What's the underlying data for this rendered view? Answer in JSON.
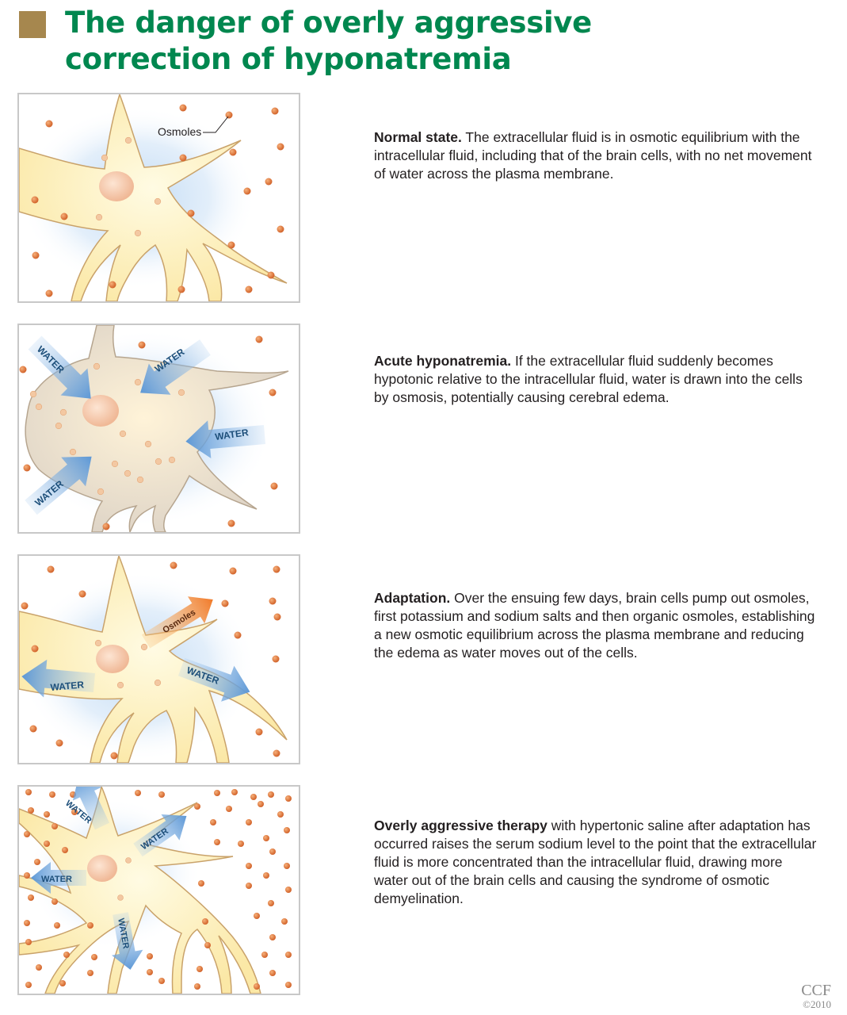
{
  "title": {
    "line1": "The danger of overly aggressive",
    "line2": "correction of hyponatremia"
  },
  "panels": [
    {
      "heading": "Normal state.",
      "text": " The extracellular fluid is in osmotic equilibrium with the intracellular fluid, including that of the brain cells, with no net movement of water across the plasma membrane.",
      "labels": {
        "osmoles": "Osmoles"
      }
    },
    {
      "heading": "Acute hyponatremia.",
      "text": " If the extracellular fluid suddenly becomes hypotonic relative to the intracellular fluid, water is drawn into the cells by osmosis, potentially causing cerebral edema.",
      "labels": {
        "water": "WATER"
      }
    },
    {
      "heading": "Adaptation.",
      "text": " Over the ensuing few days, brain cells pump out osmoles, first potassium and sodium salts and then organic osmoles, establishing a new osmotic equilibrium across the plasma membrane and reducing the edema as water moves out of the cells.",
      "labels": {
        "water": "WATER",
        "osmoles": "Osmoles"
      }
    },
    {
      "heading": "Overly aggressive therapy",
      "text": " with hypertonic saline after adaptation has occurred raises the serum sodium level to the point that the extracellular fluid is more concentrated than the intracellular fluid, drawing more water out of the brain cells and causing the syndrome of osmotic demyelination.",
      "labels": {
        "water": "WATER"
      }
    }
  ],
  "credit": {
    "org": "CCF",
    "year": "©2010"
  },
  "colors": {
    "title": "#00874f",
    "title_square": "#a6874e",
    "cell_fill": "#fdf0bd",
    "cell_stroke": "#c9a26a",
    "osmole": "#e07a36",
    "water_arrow": "#6ea6dc",
    "osmole_arrow": "#f08a3a"
  }
}
